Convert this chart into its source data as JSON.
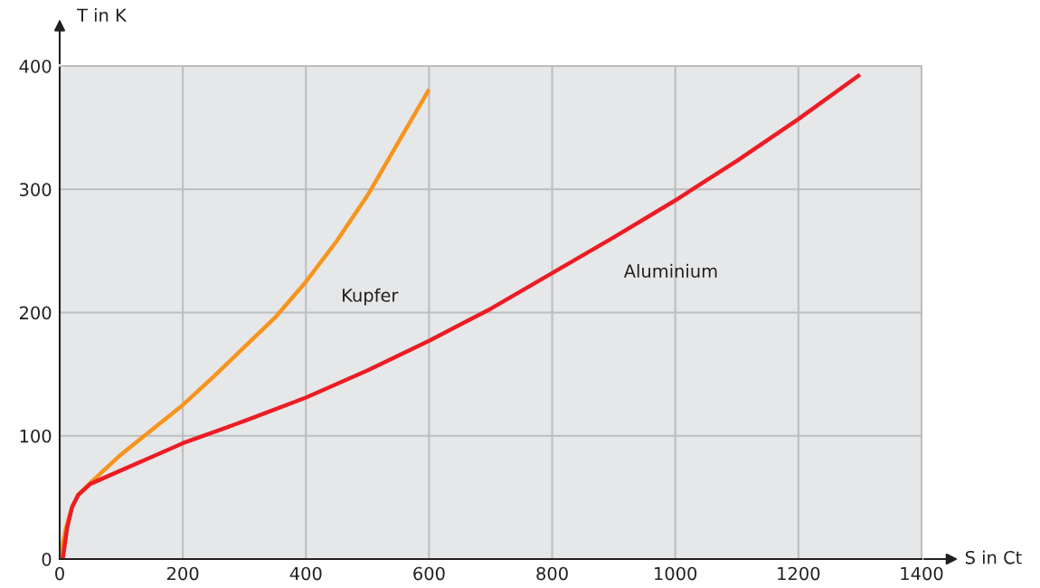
{
  "chart_data": {
    "type": "line",
    "xlabel": "S in Ct",
    "ylabel": "T in K",
    "xlim": [
      0,
      1400
    ],
    "ylim": [
      0,
      400
    ],
    "xticks": [
      0,
      200,
      400,
      600,
      800,
      1000,
      1200,
      1400
    ],
    "yticks": [
      0,
      100,
      200,
      300,
      400
    ],
    "grid": true,
    "legend": false,
    "marker": "none",
    "line_style": "solid",
    "series": [
      {
        "name": "Kupfer",
        "color": "#f7941d",
        "x": [
          0,
          10,
          20,
          30,
          50,
          100,
          150,
          200,
          250,
          300,
          350,
          400,
          450,
          500,
          550,
          600
        ],
        "values": [
          0,
          25,
          42,
          52,
          62,
          85,
          105,
          125,
          148,
          172,
          196,
          225,
          258,
          295,
          338,
          381
        ]
      },
      {
        "name": "Aluminium",
        "color": "#ed1c24",
        "x": [
          5,
          12,
          20,
          30,
          50,
          100,
          150,
          200,
          300,
          400,
          500,
          600,
          700,
          800,
          900,
          1000,
          1100,
          1200,
          1300
        ],
        "values": [
          0,
          25,
          42,
          52,
          61,
          72,
          83,
          94,
          112,
          131,
          153,
          177,
          203,
          232,
          261,
          291,
          323,
          357,
          393
        ]
      }
    ]
  }
}
